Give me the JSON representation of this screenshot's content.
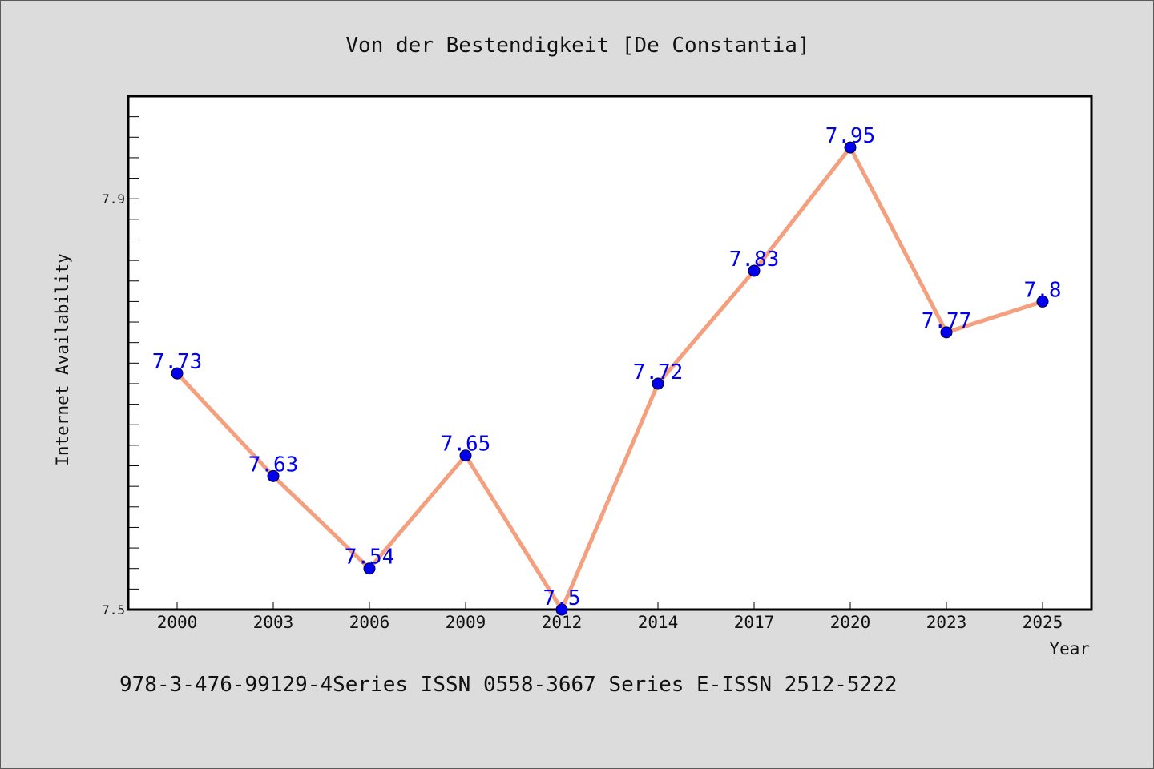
{
  "chart_data": {
    "type": "line",
    "title": "Von der Bestendigkeit [De Constantia]",
    "xlabel": "Year",
    "ylabel": "Internet Availability",
    "categories": [
      "2000",
      "2003",
      "2006",
      "2009",
      "2012",
      "2014",
      "2017",
      "2020",
      "2023",
      "2025"
    ],
    "values": [
      7.73,
      7.63,
      7.54,
      7.65,
      7.5,
      7.72,
      7.83,
      7.95,
      7.77,
      7.8
    ],
    "data_labels": [
      "7.73",
      "7.63",
      "7.54",
      "7.65",
      "7.5",
      "7.72",
      "7.83",
      "7.95",
      "7.77",
      "7.8"
    ],
    "ylim": [
      7.5,
      8.0
    ],
    "yticks": [
      7.5,
      7.9
    ],
    "ytick_labels": [
      "7.5",
      "7.9"
    ],
    "grid": false,
    "legend": "none",
    "colors": {
      "line": "#f4a07e",
      "marker": "#0000ee",
      "label": "#0000ee",
      "background": "#dcdcdc",
      "plot_area": "#ffffff"
    }
  },
  "footer": {
    "text": "978-3-476-99129-4Series ISSN 0558-3667 Series E-ISSN 2512-5222"
  }
}
